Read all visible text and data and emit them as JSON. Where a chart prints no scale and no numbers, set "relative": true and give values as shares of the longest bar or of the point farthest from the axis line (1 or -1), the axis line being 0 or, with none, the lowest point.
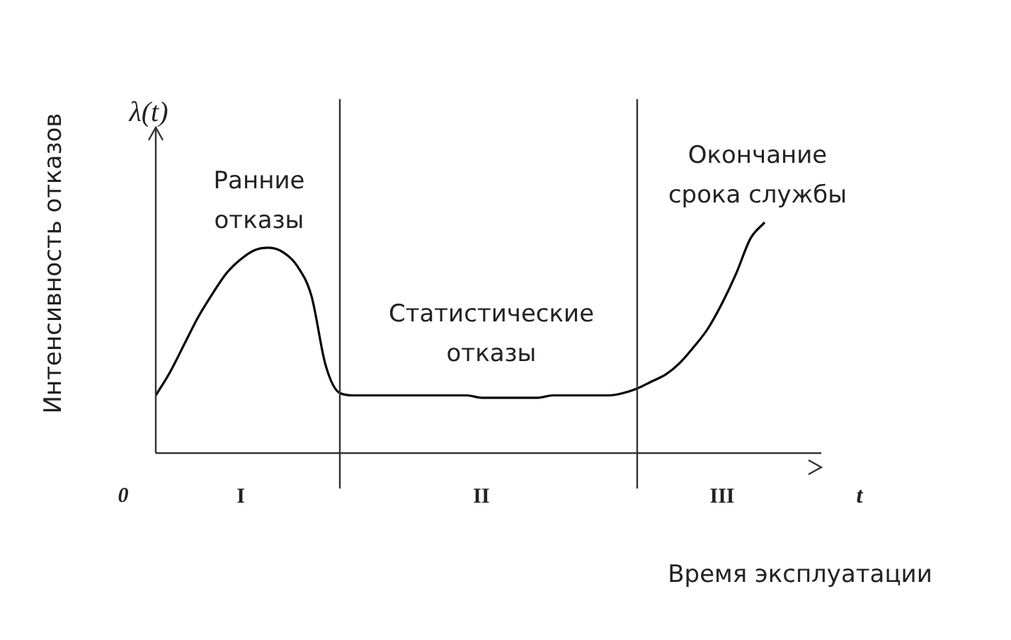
{
  "chart_data": {
    "type": "line",
    "relative": true,
    "xlabel": "Время эксплуатации",
    "ylabel": "Интенсивность отказов",
    "annotations": [
      "λ(t)",
      "Ранние отказы",
      "Статистические отказы",
      "Окончание срока службы",
      "0",
      "t"
    ],
    "categories": [
      null,
      null,
      null,
      null,
      null,
      null,
      "I",
      null,
      null,
      null,
      null,
      null,
      null,
      null,
      null,
      null,
      null,
      null,
      null,
      null,
      null,
      null,
      null,
      "II",
      null,
      null,
      null,
      null,
      null,
      null,
      null,
      null,
      null,
      null,
      null,
      null,
      null,
      null,
      null,
      null,
      "III",
      null,
      null,
      null,
      null,
      null,
      null
    ],
    "values": [
      0.25,
      0.35,
      0.47,
      0.59,
      0.69,
      0.78,
      0.84,
      0.88,
      0.89,
      0.87,
      0.81,
      0.68,
      0.38,
      0.26,
      0.25,
      0.25,
      0.25,
      0.25,
      0.25,
      0.25,
      0.25,
      0.25,
      0.25,
      0.24,
      0.24,
      0.24,
      0.24,
      0.24,
      0.25,
      0.25,
      0.25,
      0.25,
      0.25,
      0.26,
      0.28,
      0.31,
      0.34,
      0.39,
      0.46,
      0.54,
      0.65,
      0.78,
      0.93,
      1,
      null,
      null,
      null
    ],
    "color": "#000000",
    "marker": "none",
    "line_style": "solid"
  }
}
